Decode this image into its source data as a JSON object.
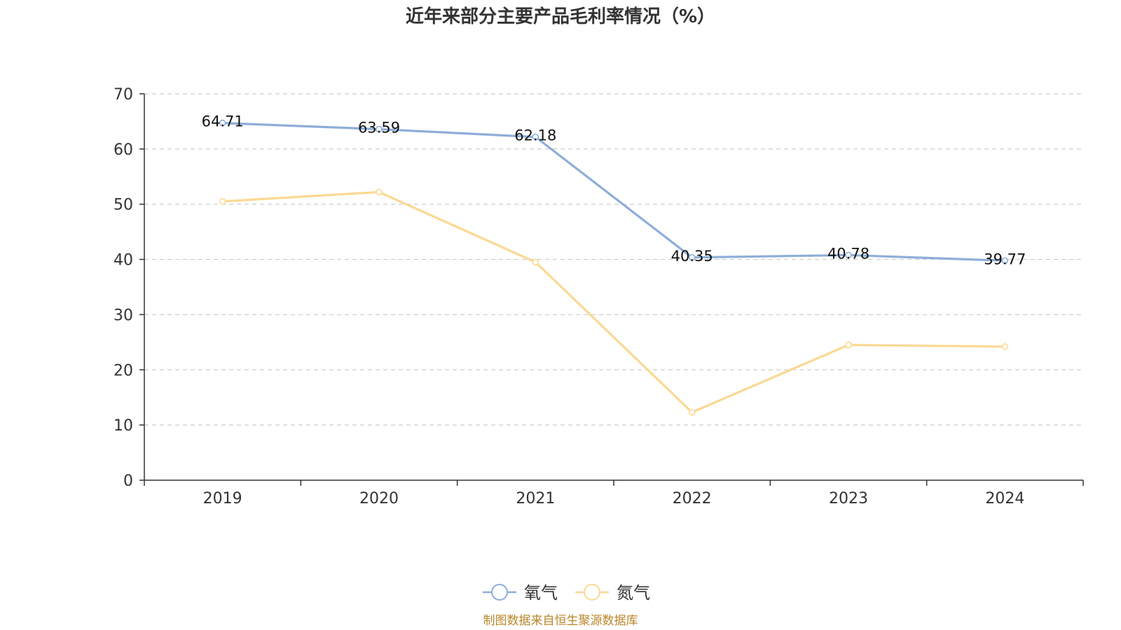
{
  "chart_data": {
    "type": "line",
    "title": "近年来部分主要产品毛利率情况（%）",
    "categories": [
      "2019",
      "2020",
      "2021",
      "2022",
      "2023",
      "2024"
    ],
    "ylim": [
      0,
      70
    ],
    "yticks": [
      0,
      10,
      20,
      30,
      40,
      50,
      60,
      70
    ],
    "grid": true,
    "legend_position": "bottom-center",
    "series": [
      {
        "name": "氧气",
        "color": "#8eaed8",
        "values": [
          64.71,
          63.59,
          62.18,
          40.35,
          40.78,
          39.77
        ],
        "data_labels": [
          "64.71",
          "63.59",
          "62.18",
          "40.35",
          "40.78",
          "39.77"
        ]
      },
      {
        "name": "氮气",
        "color": "#fbd893",
        "values": [
          50.5,
          52.2,
          39.5,
          12.3,
          24.5,
          24.2
        ]
      }
    ],
    "source_note": "制图数据来自恒生聚源数据库"
  }
}
